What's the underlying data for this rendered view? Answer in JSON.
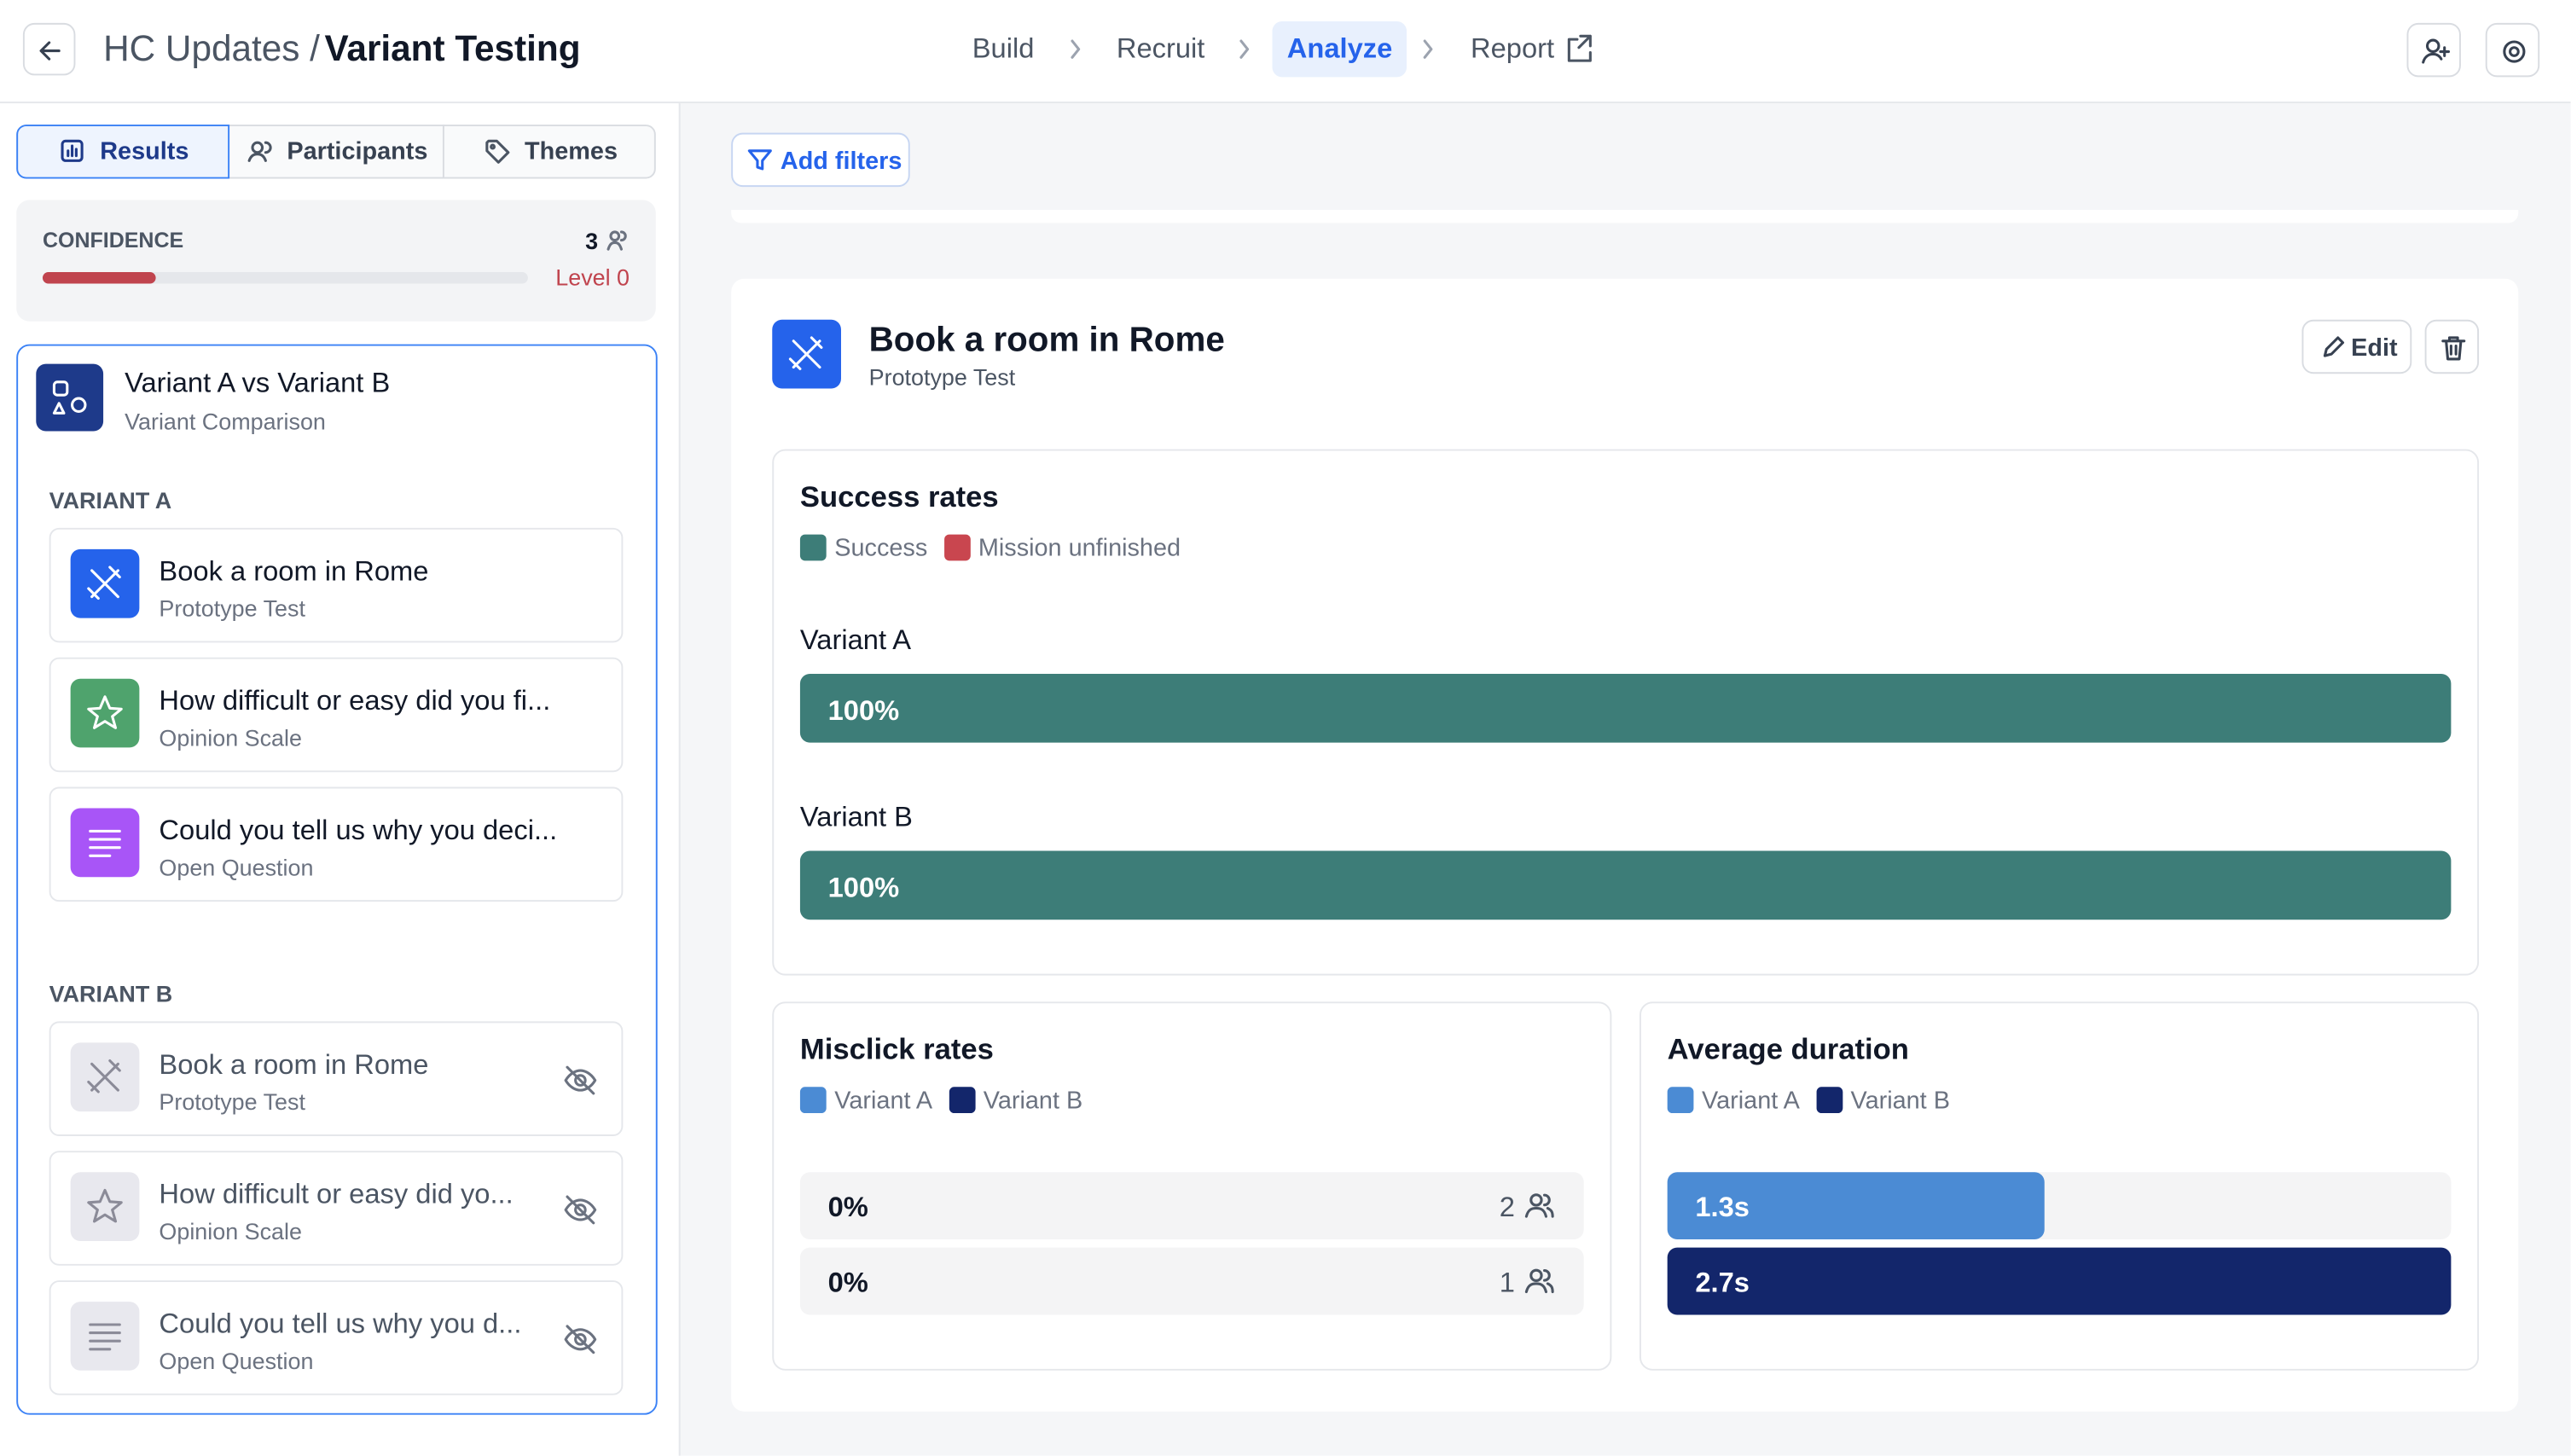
{
  "header": {
    "project": "HC Updates /",
    "page": "Variant Testing"
  },
  "nav": [
    "Build",
    "Recruit",
    "Analyze",
    "Report"
  ],
  "tabs": [
    "Results",
    "Participants",
    "Themes"
  ],
  "confidence": {
    "label": "CONFIDENCE",
    "participants": 3,
    "level": "Level 0"
  },
  "comparison": {
    "title": "Variant A vs Variant B",
    "subtitle": "Variant Comparison"
  },
  "variants": [
    {
      "label": "VARIANT A",
      "items": [
        {
          "title": "Book a room in Rome",
          "type": "Prototype Test"
        },
        {
          "title": "How difficult or easy did you fi...",
          "type": "Opinion Scale"
        },
        {
          "title": "Could you tell us why you deci...",
          "type": "Open Question"
        }
      ]
    },
    {
      "label": "VARIANT B",
      "items": [
        {
          "title": "Book a room in Rome",
          "type": "Prototype Test"
        },
        {
          "title": "How difficult or easy did yo...",
          "type": "Opinion Scale"
        },
        {
          "title": "Could you tell us why you d...",
          "type": "Open Question"
        }
      ]
    }
  ],
  "filters_button": "Add filters",
  "block": {
    "title": "Book a room in Rome",
    "subtitle": "Prototype Test",
    "edit": "Edit"
  },
  "success_rates": {
    "type": "bar",
    "title": "Success rates",
    "categories": [
      "Variant A",
      "Variant B"
    ],
    "xlim": [
      0,
      100
    ],
    "series": [
      {
        "name": "Success",
        "color": "#3d7d78",
        "values": [
          100,
          100
        ],
        "value_labels": [
          "100%",
          "100%"
        ]
      },
      {
        "name": "Mission unfinished",
        "color": "#c9464f",
        "values": [
          0,
          0
        ]
      }
    ]
  },
  "misclick_rates": {
    "type": "bar",
    "title": "Misclick rates",
    "xlim": [
      0,
      100
    ],
    "series": [
      {
        "name": "Variant A",
        "color": "#4b8bd4",
        "values": [
          0
        ],
        "value_labels": [
          "0%"
        ],
        "participants": [
          2
        ]
      },
      {
        "name": "Variant B",
        "color": "#13266b",
        "values": [
          0
        ],
        "value_labels": [
          "0%"
        ],
        "participants": [
          1
        ]
      }
    ]
  },
  "average_duration": {
    "type": "bar",
    "title": "Average duration",
    "xlim": [
      0,
      2.7
    ],
    "series": [
      {
        "name": "Variant A",
        "color": "#4b8bd4",
        "values": [
          1.3
        ],
        "value_labels": [
          "1.3s"
        ]
      },
      {
        "name": "Variant B",
        "color": "#13266b",
        "values": [
          2.7
        ],
        "value_labels": [
          "2.7s"
        ]
      }
    ]
  }
}
